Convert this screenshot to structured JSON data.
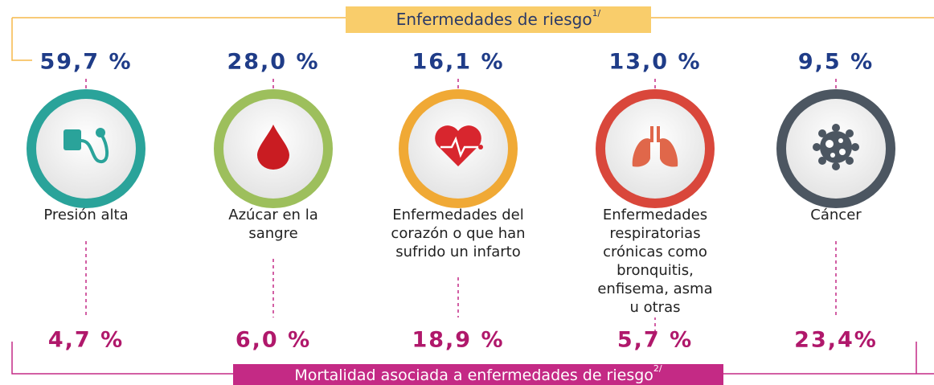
{
  "header": {
    "title": "Enfermedades de riesgo",
    "note": "1/"
  },
  "items": [
    {
      "risk": "59,7 %",
      "label": [
        "Presión alta"
      ],
      "mortality": "4,7 %"
    },
    {
      "risk": "28,0 %",
      "label": [
        "Azúcar en la",
        "sangre"
      ],
      "mortality": "6,0 %"
    },
    {
      "risk": "16,1 %",
      "label": [
        "Enfermedades del",
        "corazón o que han",
        "sufrido un infarto"
      ],
      "mortality": "18,9 %"
    },
    {
      "risk": "13,0 %",
      "label": [
        "Enfermedades",
        "respiratorias",
        "crónicas como",
        "bronquitis,",
        "enfisema, asma",
        "u otras"
      ],
      "mortality": "5,7 %"
    },
    {
      "risk": "9,5 %",
      "label": [
        "Cáncer"
      ],
      "mortality": "23,4%"
    }
  ],
  "footer": {
    "title": "Mortalidad asociada a enfermedades de riesgo",
    "note": "2/"
  }
}
